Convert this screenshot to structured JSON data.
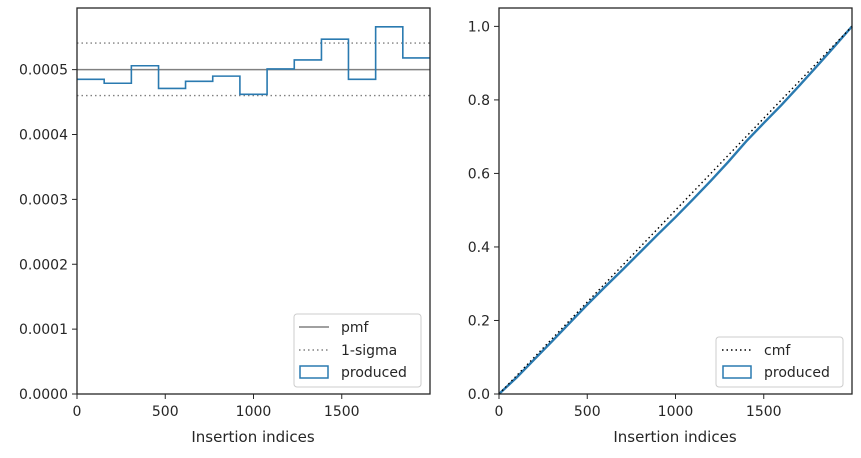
{
  "chart_data": [
    {
      "type": "histogram",
      "xlabel": "Insertion indices",
      "ylabel": "",
      "xlim": [
        0,
        2000
      ],
      "ylim": [
        0,
        0.000595
      ],
      "xticks": [
        0,
        500,
        1000,
        1500
      ],
      "yticks": [
        0,
        0.0001,
        0.0002,
        0.0003,
        0.0004,
        0.0005
      ],
      "ytick_labels": [
        "0.0000",
        "0.0001",
        "0.0002",
        "0.0003",
        "0.0004",
        "0.0005"
      ],
      "grid": false,
      "legend_position": "bottom-right",
      "legend": [
        {
          "label": "pmf",
          "style": "solid",
          "color": "#808080"
        },
        {
          "label": "1-sigma",
          "style": "dotted",
          "color": "#808080"
        },
        {
          "label": "produced",
          "style": "step",
          "color": "#2a7ab0"
        }
      ],
      "pmf": 0.0005,
      "sigma_upper": 0.000541,
      "sigma_lower": 0.00046,
      "bin_edges": [
        0,
        154,
        308,
        462,
        615,
        769,
        923,
        1077,
        1231,
        1385,
        1538,
        1692,
        1846,
        2000
      ],
      "values": [
        0.000485,
        0.000479,
        0.000506,
        0.000471,
        0.000482,
        0.00049,
        0.000462,
        0.000501,
        0.000515,
        0.000547,
        0.000485,
        0.000566,
        0.000518
      ]
    },
    {
      "type": "line",
      "xlabel": "Insertion indices",
      "ylabel": "",
      "xlim": [
        0,
        2000
      ],
      "ylim": [
        0,
        1.05
      ],
      "xticks": [
        0,
        500,
        1000,
        1500
      ],
      "yticks": [
        0,
        0.2,
        0.4,
        0.6,
        0.8,
        1.0
      ],
      "ytick_labels": [
        "0.0",
        "0.2",
        "0.4",
        "0.6",
        "0.8",
        "1.0"
      ],
      "grid": false,
      "legend_position": "bottom-right",
      "legend": [
        {
          "label": "cmf",
          "style": "dotted",
          "color": "#000000"
        },
        {
          "label": "produced",
          "style": "step",
          "color": "#2a7ab0"
        }
      ],
      "cmf": {
        "x": [
          0,
          2000
        ],
        "y": [
          0,
          1
        ]
      },
      "produced": {
        "x": [
          0,
          100,
          200,
          300,
          400,
          500,
          600,
          700,
          800,
          900,
          1000,
          1100,
          1200,
          1300,
          1400,
          1500,
          1600,
          1700,
          1800,
          1900,
          2000
        ],
        "y": [
          0,
          0.045,
          0.094,
          0.143,
          0.193,
          0.243,
          0.291,
          0.338,
          0.386,
          0.434,
          0.481,
          0.53,
          0.58,
          0.632,
          0.687,
          0.737,
          0.786,
          0.838,
          0.891,
          0.945,
          1.0
        ]
      }
    }
  ]
}
